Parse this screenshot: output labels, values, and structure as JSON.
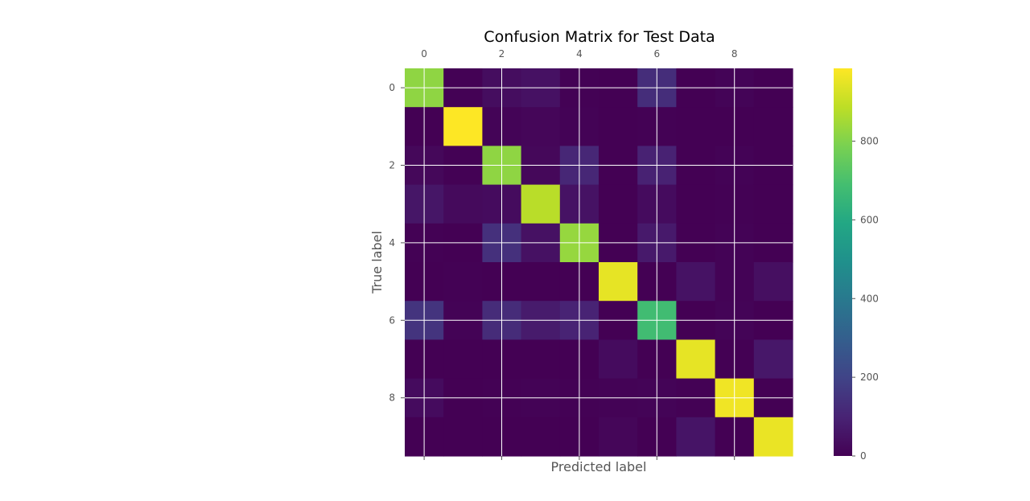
{
  "chart_data": {
    "type": "heatmap",
    "title": "Confusion Matrix for Test Data",
    "xlabel": "Predicted label",
    "ylabel": "True label",
    "colormap": "viridis",
    "x_categories": [
      0,
      1,
      2,
      3,
      4,
      5,
      6,
      7,
      8,
      9
    ],
    "y_categories": [
      0,
      1,
      2,
      3,
      4,
      5,
      6,
      7,
      8,
      9
    ],
    "x_tick_labels": [
      "0",
      "2",
      "4",
      "6",
      "8"
    ],
    "y_tick_labels": [
      "0",
      "2",
      "4",
      "6",
      "8"
    ],
    "x_axis_position": "top",
    "grid": true,
    "matrix": [
      [
        820,
        2,
        35,
        45,
        3,
        1,
        130,
        0,
        8,
        0
      ],
      [
        0,
        985,
        10,
        15,
        5,
        0,
        3,
        0,
        0,
        0
      ],
      [
        20,
        2,
        820,
        20,
        110,
        0,
        95,
        0,
        6,
        0
      ],
      [
        60,
        25,
        30,
        880,
        50,
        0,
        30,
        0,
        4,
        0
      ],
      [
        2,
        0,
        140,
        45,
        830,
        0,
        70,
        0,
        5,
        0
      ],
      [
        0,
        2,
        0,
        0,
        0,
        950,
        0,
        50,
        6,
        40
      ],
      [
        150,
        5,
        125,
        75,
        100,
        0,
        680,
        0,
        10,
        0
      ],
      [
        0,
        0,
        0,
        0,
        0,
        30,
        0,
        950,
        0,
        65
      ],
      [
        30,
        0,
        3,
        5,
        3,
        6,
        8,
        2,
        965,
        0
      ],
      [
        0,
        0,
        0,
        0,
        0,
        15,
        0,
        55,
        0,
        955
      ]
    ],
    "colorbar": {
      "min": 0,
      "max": 985,
      "ticks": [
        0,
        200,
        400,
        600,
        800
      ],
      "tick_labels": [
        "0",
        "200",
        "400",
        "600",
        "800"
      ]
    }
  }
}
